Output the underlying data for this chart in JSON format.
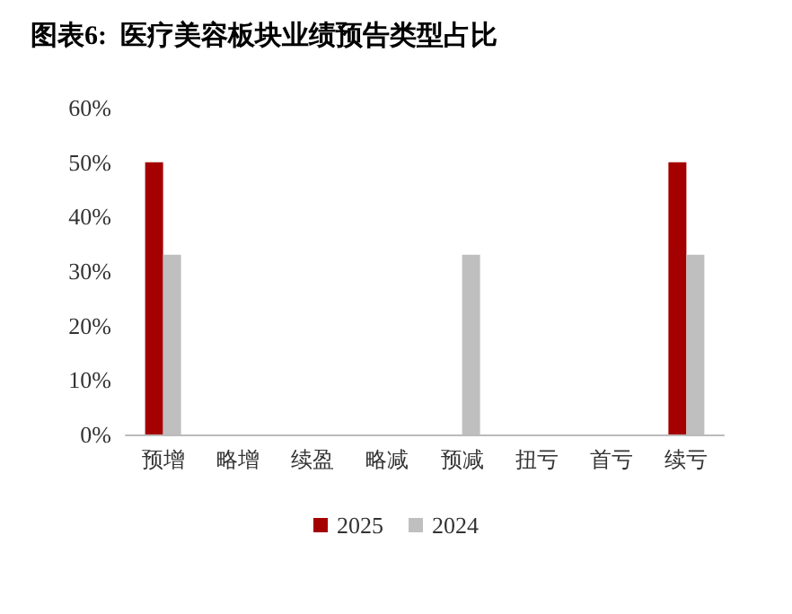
{
  "chart_data": {
    "type": "bar",
    "title": "图表6:  医疗美容板块业绩预告类型占比",
    "categories": [
      "预增",
      "略增",
      "续盈",
      "略减",
      "预减",
      "扭亏",
      "首亏",
      "续亏"
    ],
    "series": [
      {
        "name": "2025",
        "color": "#a50000",
        "values": [
          50,
          0,
          0,
          0,
          0,
          0,
          0,
          50
        ]
      },
      {
        "name": "2024",
        "color": "#bfbfbf",
        "values": [
          33,
          0,
          0,
          0,
          33,
          0,
          0,
          33
        ]
      }
    ],
    "ylim": [
      0,
      60
    ],
    "yticks": [
      {
        "value": 0,
        "label": "0%"
      },
      {
        "value": 10,
        "label": "10%"
      },
      {
        "value": 20,
        "label": "20%"
      },
      {
        "value": 30,
        "label": "30%"
      },
      {
        "value": 40,
        "label": "40%"
      },
      {
        "value": 50,
        "label": "50%"
      },
      {
        "value": 60,
        "label": "60%"
      }
    ],
    "grid": false,
    "legend": "bottom"
  }
}
